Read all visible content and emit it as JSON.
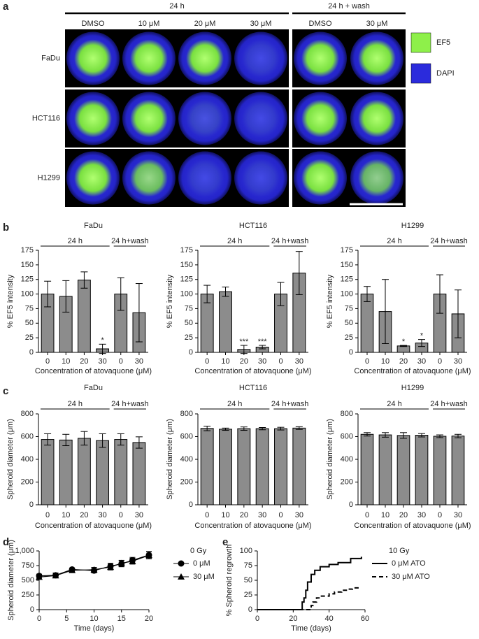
{
  "panel_letters": [
    "a",
    "b",
    "c",
    "d",
    "e"
  ],
  "panel_a": {
    "group_labels": [
      "24 h",
      "24 h + wash"
    ],
    "columns": [
      "DMSO",
      "10 μM",
      "20 μM",
      "30 μM",
      "DMSO",
      "30 μM"
    ],
    "rows": [
      "FaDu",
      "HCT116",
      "H1299"
    ],
    "legend": [
      {
        "name": "EF5",
        "color": "#8ef04a"
      },
      {
        "name": "DAPI",
        "color": "#2b2bdc"
      }
    ]
  },
  "chart_data": [
    {
      "type": "bar",
      "title": "FaDu",
      "categories": [
        "0",
        "10",
        "20",
        "30",
        "0",
        "30"
      ],
      "values": [
        100,
        96,
        124,
        6,
        100,
        68
      ],
      "errors": [
        22,
        27,
        14,
        8,
        28,
        50
      ],
      "significance": [
        null,
        null,
        null,
        "*",
        null,
        null
      ],
      "groups": [
        {
          "label": "24 h",
          "size": 4
        },
        {
          "label": "24 h+wash",
          "size": 2
        }
      ],
      "color": "#8c8c8c",
      "ylabel": "% EF5 intensity",
      "xlabel": "Concentration of atovaquone (μM)",
      "ylim": [
        0,
        175
      ],
      "yticks": [
        0,
        25,
        50,
        75,
        100,
        125,
        150,
        175
      ]
    },
    {
      "type": "bar",
      "title": "HCT116",
      "categories": [
        "0",
        "10",
        "20",
        "30",
        "0",
        "30"
      ],
      "values": [
        100,
        104,
        5,
        9,
        100,
        136
      ],
      "errors": [
        15,
        8,
        7,
        3,
        20,
        37
      ],
      "significance": [
        null,
        null,
        "***",
        "***",
        null,
        null
      ],
      "groups": [
        {
          "label": "24 h",
          "size": 4
        },
        {
          "label": "24 h+wash",
          "size": 2
        }
      ],
      "color": "#8c8c8c",
      "ylabel": "% EF5 intensity",
      "xlabel": "Concentration of atovaquone (μM)",
      "ylim": [
        0,
        175
      ],
      "yticks": [
        0,
        25,
        50,
        75,
        100,
        125,
        150,
        175
      ]
    },
    {
      "type": "bar",
      "title": "H1299",
      "categories": [
        "0",
        "10",
        "20",
        "30",
        "0",
        "30"
      ],
      "values": [
        100,
        70,
        11,
        16,
        100,
        66
      ],
      "errors": [
        13,
        55,
        1,
        6,
        33,
        41
      ],
      "significance": [
        null,
        null,
        "*",
        "*",
        null,
        null
      ],
      "groups": [
        {
          "label": "24 h",
          "size": 4
        },
        {
          "label": "24 h+wash",
          "size": 2
        }
      ],
      "color": "#8c8c8c",
      "ylabel": "% EF5 intensity",
      "xlabel": "Concentration of atovaquone (μM)",
      "ylim": [
        0,
        175
      ],
      "yticks": [
        0,
        25,
        50,
        75,
        100,
        125,
        150,
        175
      ]
    },
    {
      "type": "bar",
      "title": "FaDu",
      "categories": [
        "0",
        "10",
        "20",
        "30",
        "0",
        "30"
      ],
      "values": [
        575,
        570,
        585,
        565,
        575,
        548
      ],
      "errors": [
        50,
        50,
        60,
        60,
        50,
        50
      ],
      "groups": [
        {
          "label": "24 h",
          "size": 4
        },
        {
          "label": "24 h+wash",
          "size": 2
        }
      ],
      "color": "#8c8c8c",
      "ylabel": "Spheroid diameter (μm)",
      "xlabel": "Concentration of atovaquone (μM)",
      "ylim": [
        0,
        800
      ],
      "yticks": [
        0,
        200,
        400,
        600,
        800
      ]
    },
    {
      "type": "bar",
      "title": "HCT116",
      "categories": [
        "0",
        "10",
        "20",
        "30",
        "0",
        "30"
      ],
      "values": [
        672,
        665,
        670,
        670,
        670,
        675
      ],
      "errors": [
        20,
        10,
        15,
        10,
        12,
        12
      ],
      "groups": [
        {
          "label": "24 h",
          "size": 4
        },
        {
          "label": "24 h+wash",
          "size": 2
        }
      ],
      "color": "#8c8c8c",
      "ylabel": "Spheroid diameter (μm)",
      "xlabel": "Concentration of atovaquone (μM)",
      "ylim": [
        0,
        800
      ],
      "yticks": [
        0,
        200,
        400,
        600,
        800
      ]
    },
    {
      "type": "bar",
      "title": "H1299",
      "categories": [
        "0",
        "10",
        "20",
        "30",
        "0",
        "30"
      ],
      "values": [
        620,
        615,
        610,
        612,
        603,
        605
      ],
      "errors": [
        15,
        20,
        25,
        15,
        12,
        15
      ],
      "groups": [
        {
          "label": "24 h",
          "size": 4
        },
        {
          "label": "24 h+wash",
          "size": 2
        }
      ],
      "color": "#8c8c8c",
      "ylabel": "Spheroid diameter (μm)",
      "xlabel": "Concentration of atovaquone (μM)",
      "ylim": [
        0,
        800
      ],
      "yticks": [
        0,
        200,
        400,
        600,
        800
      ]
    },
    {
      "type": "line",
      "legend_title": "0 Gy",
      "x": [
        0,
        3,
        6,
        10,
        13,
        15,
        17,
        20
      ],
      "series": [
        {
          "name": "0 μM",
          "color": "#000000",
          "marker": "circle",
          "values": [
            575,
            585,
            685,
            665,
            740,
            780,
            840,
            930
          ],
          "errors": [
            30,
            40,
            20,
            40,
            50,
            50,
            50,
            60
          ]
        },
        {
          "name": "30 μM",
          "color": "#000000",
          "marker": "triangle",
          "values": [
            555,
            580,
            670,
            680,
            725,
            790,
            825,
            925
          ],
          "errors": [
            30,
            40,
            20,
            40,
            50,
            50,
            50,
            60
          ]
        }
      ],
      "ylabel": "Spheroid diameter (μm)",
      "xlabel": "Time (days)",
      "xlim": [
        0,
        20
      ],
      "xticks": [
        0,
        5,
        10,
        15,
        20
      ],
      "ylim": [
        0,
        1000
      ],
      "yticks": [
        0,
        250,
        500,
        750,
        {
          "value": 1000,
          "label": "1,000"
        }
      ]
    },
    {
      "type": "step",
      "legend_title": "10 Gy",
      "series": [
        {
          "name": "0 μM ATO",
          "color": "#000000",
          "line_style": "solid",
          "x": [
            0,
            24,
            25,
            26,
            27,
            28,
            30,
            32,
            35,
            40,
            45,
            52,
            58
          ],
          "values": [
            0,
            0,
            13,
            20,
            33,
            47,
            60,
            67,
            73,
            77,
            80,
            87,
            90
          ]
        },
        {
          "name": "30 μM ATO",
          "color": "#000000",
          "line_style": "dashed",
          "x": [
            0,
            29,
            30,
            31,
            33,
            35,
            40,
            43,
            47,
            50,
            53,
            57
          ],
          "values": [
            0,
            0,
            7,
            13,
            20,
            23,
            27,
            30,
            33,
            35,
            37,
            38
          ]
        }
      ],
      "ylabel": "% Spheroid regrowth",
      "xlabel": "Time (days)",
      "xlim": [
        0,
        60
      ],
      "xticks": [
        0,
        20,
        40,
        60
      ],
      "ylim": [
        0,
        100
      ],
      "yticks": [
        0,
        25,
        50,
        75,
        100
      ]
    }
  ]
}
